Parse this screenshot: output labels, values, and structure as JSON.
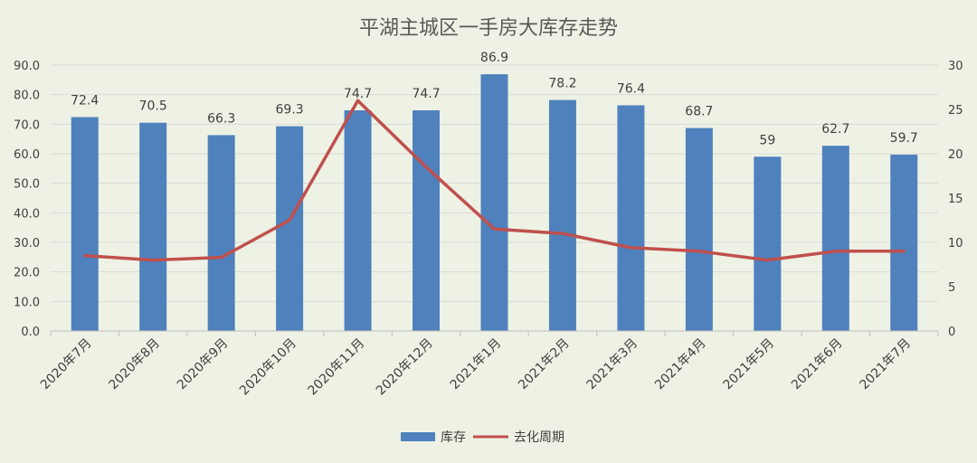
{
  "chart_data": {
    "type": "bar",
    "title": "平湖主城区一手房大库存走势",
    "categories": [
      "2020年7月",
      "2020年8月",
      "2020年9月",
      "2020年10月",
      "2020年11月",
      "2020年12月",
      "2021年1月",
      "2021年2月",
      "2021年3月",
      "2021年4月",
      "2021年5月",
      "2021年6月",
      "2021年7月"
    ],
    "series": [
      {
        "name": "库存",
        "type": "bar",
        "axis": "left",
        "color": "#4f81bd",
        "values": [
          72.4,
          70.5,
          66.3,
          69.3,
          74.7,
          74.7,
          86.9,
          78.2,
          76.4,
          68.7,
          59,
          62.7,
          59.7
        ],
        "labels": [
          "72.4",
          "70.5",
          "66.3",
          "69.3",
          "74.7",
          "74.7",
          "86.9",
          "78.2",
          "76.4",
          "68.7",
          "59",
          "62.7",
          "59.7"
        ]
      },
      {
        "name": "去化周期",
        "type": "line",
        "axis": "right",
        "color": "#c0504d",
        "values": [
          8.5,
          8.0,
          8.3,
          12.5,
          26.0,
          18.5,
          11.5,
          11.0,
          9.4,
          9.0,
          8.0,
          9.0,
          9.0
        ]
      }
    ],
    "y_left": {
      "min": 0,
      "max": 90,
      "ticks": [
        "0.0",
        "10.0",
        "20.0",
        "30.0",
        "40.0",
        "50.0",
        "60.0",
        "70.0",
        "80.0",
        "90.0"
      ]
    },
    "y_right": {
      "min": 0,
      "max": 30,
      "ticks": [
        "0",
        "5",
        "10",
        "15",
        "20",
        "25",
        "30"
      ]
    },
    "grid": true,
    "legend_position": "bottom"
  }
}
